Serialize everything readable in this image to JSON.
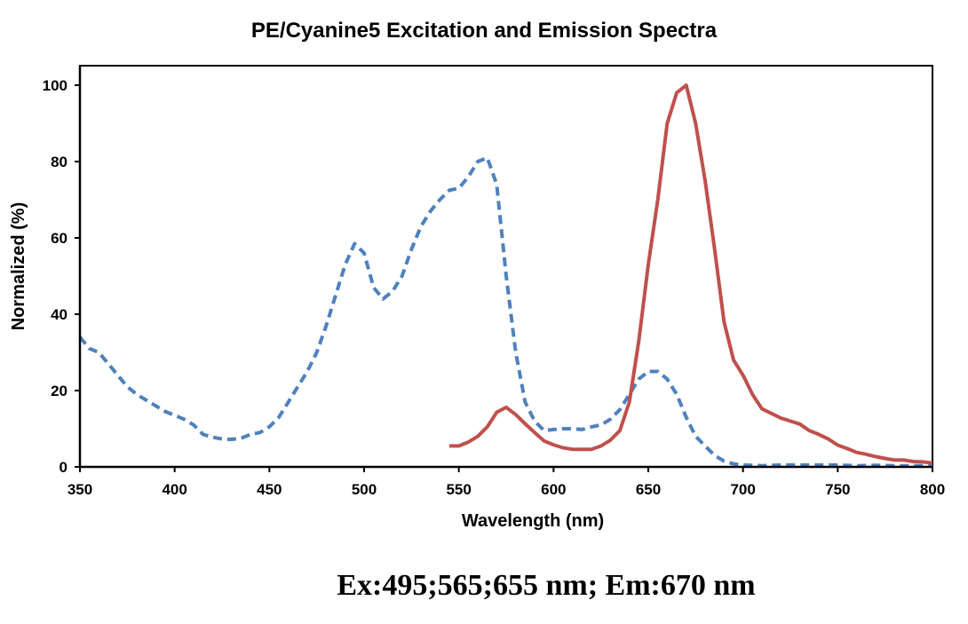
{
  "chart_data": {
    "type": "line",
    "title": "PE/Cyanine5 Excitation and Emission Spectra",
    "xlabel": "Wavelength (nm)",
    "ylabel": "Normalized (%)",
    "xlim": [
      350,
      800
    ],
    "ylim": [
      0,
      100
    ],
    "xticks": [
      350,
      400,
      450,
      500,
      550,
      600,
      650,
      700,
      750,
      800
    ],
    "yticks": [
      0,
      20,
      40,
      60,
      80,
      100
    ],
    "grid": false,
    "annotation": "Ex:495;565;655 nm; Em:670 nm",
    "series": [
      {
        "name": "Excitation",
        "style": "dashed",
        "color": "#4f81bd",
        "x": [
          350,
          355,
          360,
          365,
          370,
          375,
          380,
          385,
          390,
          395,
          400,
          405,
          410,
          415,
          420,
          425,
          430,
          435,
          440,
          445,
          450,
          455,
          460,
          465,
          470,
          475,
          480,
          485,
          490,
          495,
          500,
          505,
          510,
          515,
          520,
          525,
          530,
          535,
          540,
          545,
          550,
          555,
          560,
          565,
          570,
          575,
          580,
          585,
          590,
          595,
          600,
          605,
          610,
          615,
          620,
          625,
          630,
          635,
          640,
          645,
          650,
          655,
          660,
          665,
          670,
          675,
          680,
          685,
          690,
          695,
          700,
          710,
          720,
          730,
          740,
          750,
          760,
          770,
          780,
          790,
          800
        ],
        "y": [
          34,
          31,
          30,
          27,
          24,
          21,
          19,
          17.5,
          16,
          14.5,
          13.5,
          12.5,
          11,
          8.5,
          7.8,
          7.3,
          7.2,
          7.5,
          8.5,
          9,
          10.5,
          13,
          17,
          21,
          25,
          30,
          37,
          45,
          53,
          58.5,
          56,
          47,
          44,
          46,
          50,
          57,
          63,
          67,
          70,
          72.5,
          73,
          76,
          80,
          81,
          74,
          50,
          30,
          17,
          12,
          9.5,
          9.8,
          10,
          10,
          9.8,
          10.5,
          11,
          12.5,
          15,
          19,
          23,
          25,
          25,
          23,
          19,
          13,
          8,
          5.5,
          3,
          1.5,
          0.8,
          0.5,
          0.3,
          0.5,
          0.5,
          0.5,
          0.5,
          0.3,
          0.4,
          0.3,
          0.3,
          0.3
        ]
      },
      {
        "name": "Emission",
        "style": "solid",
        "color": "#c0504d",
        "x": [
          545,
          550,
          555,
          560,
          565,
          570,
          575,
          580,
          585,
          590,
          595,
          600,
          605,
          610,
          615,
          620,
          625,
          630,
          635,
          640,
          645,
          650,
          655,
          660,
          665,
          670,
          675,
          680,
          685,
          690,
          695,
          700,
          705,
          710,
          715,
          720,
          725,
          730,
          735,
          740,
          745,
          750,
          755,
          760,
          765,
          770,
          775,
          780,
          785,
          790,
          795,
          800
        ],
        "y": [
          5.5,
          5.5,
          6.5,
          8,
          10.5,
          14.3,
          15.6,
          13.7,
          11.3,
          9,
          6.8,
          5.8,
          5,
          4.6,
          4.6,
          4.6,
          5.5,
          7,
          9.5,
          17,
          33,
          53,
          70,
          90,
          98,
          100,
          90,
          75,
          57,
          38,
          28,
          24,
          19,
          15.2,
          14,
          12.8,
          12,
          11.2,
          9.5,
          8.5,
          7.3,
          5.7,
          4.8,
          3.8,
          3.3,
          2.7,
          2.2,
          1.8,
          1.8,
          1.4,
          1.3,
          1.0
        ]
      }
    ]
  }
}
